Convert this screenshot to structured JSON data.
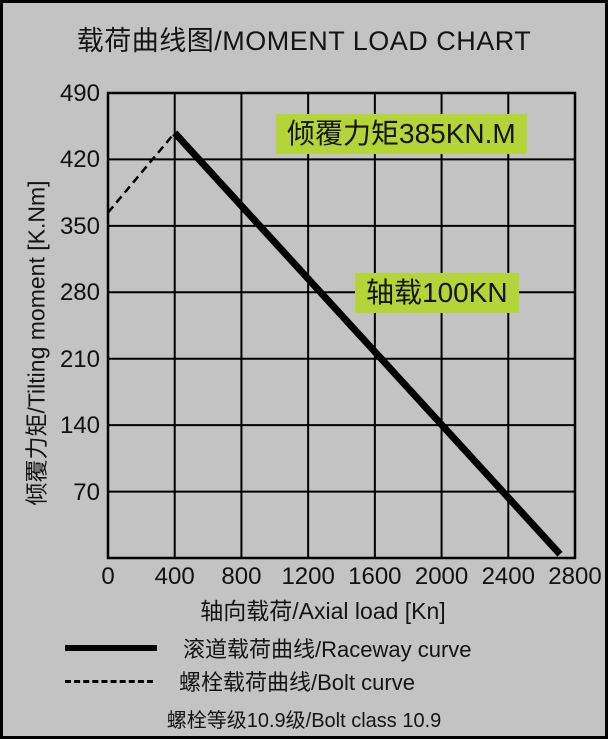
{
  "title": "载荷曲线图/MOMENT LOAD CHART",
  "colors": {
    "background": "#c3c3c3",
    "line": "#000000",
    "highlight": "#b5d438"
  },
  "chart_data": {
    "type": "line",
    "title": "载荷曲线图/MOMENT LOAD CHART",
    "xlabel": "轴向载荷/Axial load [Kn]",
    "ylabel": "倾覆力矩/Tilting moment [K.Nm]",
    "xlim": [
      0,
      2800
    ],
    "ylim": [
      0,
      490
    ],
    "x_ticks": [
      0,
      400,
      800,
      1200,
      1600,
      2000,
      2400,
      2800
    ],
    "y_ticks": [
      70,
      140,
      210,
      280,
      350,
      420,
      490
    ],
    "grid": true,
    "legend_position": "bottom-left",
    "series": [
      {
        "name": "滚道载荷曲线/Raceway curve",
        "style": "solid",
        "stroke_width": 7,
        "points": [
          [
            400,
            448
          ],
          [
            2710,
            4
          ]
        ]
      },
      {
        "name": "螺栓载荷曲线/Bolt curve",
        "style": "dashed",
        "stroke_width": 2.5,
        "points": [
          [
            0,
            364
          ],
          [
            400,
            448
          ]
        ]
      }
    ],
    "annotations": [
      {
        "text": "倾覆力矩385KN.M"
      },
      {
        "text": "轴载100KN"
      }
    ]
  },
  "legend": {
    "items": [
      {
        "label": "滚道载荷曲线/Raceway curve",
        "style": "solid"
      },
      {
        "label": "螺栓载荷曲线/Bolt curve",
        "style": "dashed"
      }
    ]
  },
  "footer": "螺栓等级10.9级/Bolt class 10.9"
}
